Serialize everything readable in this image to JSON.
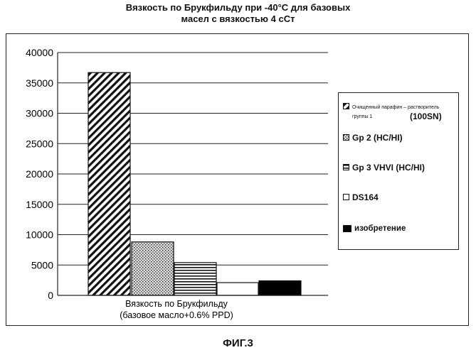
{
  "title": {
    "line1": "Вязкость по Брукфильду при -40°C для базовых",
    "line2": "масел с вязкостью 4 сСт"
  },
  "caption": "ФИГ.3",
  "colors": {
    "axis": "#222222",
    "grid": "#222222",
    "bar_border": "#111111"
  },
  "chart_data": {
    "type": "bar",
    "categories": [
      "Вязкость по Брукфильду\n(базовое масло+0.6% PPD)"
    ],
    "category_label_line1": "Вязкость по Брукфильду",
    "category_label_line2": "(базовое масло+0.6% PPD)",
    "ylim": [
      0,
      40000
    ],
    "yticks": [
      "0",
      "5000",
      "10000",
      "15000",
      "20000",
      "25000",
      "30000",
      "35000",
      "40000"
    ],
    "grid": true,
    "legend_position": "right",
    "series": [
      {
        "name": "Очищенный парафин – растворитель группы 1 (100SN)",
        "values": [
          36700
        ],
        "pattern": "diagonal-hatch"
      },
      {
        "name": "Gp 2 (HC/HI)",
        "values": [
          8800
        ],
        "pattern": "crosshatch"
      },
      {
        "name": "Gp 3 VHVI (HC/HI)",
        "values": [
          5400
        ],
        "pattern": "horizontal-lines"
      },
      {
        "name": "DS164",
        "values": [
          2100
        ],
        "pattern": "white"
      },
      {
        "name": "изобретение",
        "values": [
          2400
        ],
        "pattern": "black"
      }
    ]
  },
  "legend": {
    "items": [
      {
        "label": "Очищенный парафин – растворитель\nгруппы 1",
        "extra": "(100SN)"
      },
      {
        "label": "Gp 2 (HC/HI)"
      },
      {
        "label": "Gp 3 VHVI (HC/HI)"
      },
      {
        "label": "DS164"
      },
      {
        "label": "изобретение"
      }
    ]
  }
}
